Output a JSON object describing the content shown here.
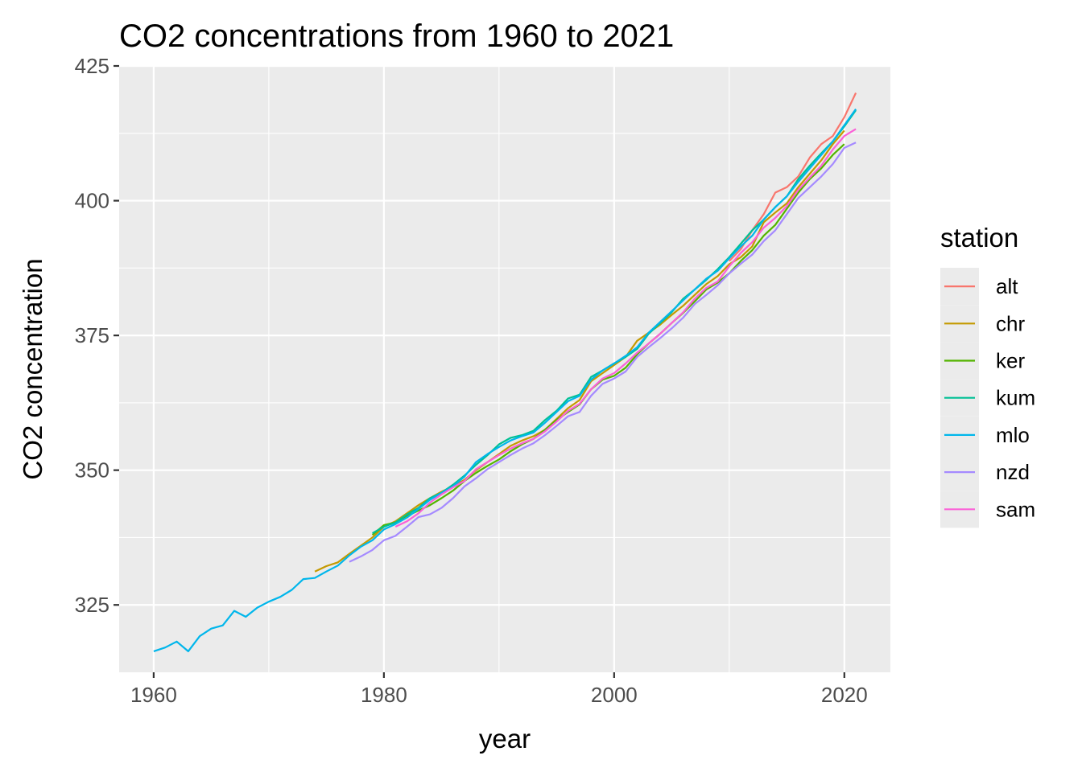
{
  "chart_data": {
    "type": "line",
    "title": "CO2 concentrations from 1960 to 2021",
    "xlabel": "year",
    "ylabel": "CO2 concentration",
    "xlim": [
      1957,
      2024
    ],
    "ylim": [
      312.5,
      425
    ],
    "x_ticks": [
      "1960",
      "1980",
      "2000",
      "2020"
    ],
    "y_ticks": [
      "325",
      "350",
      "375",
      "400",
      "425"
    ],
    "grid": true,
    "legend_title": "station",
    "legend_position": "right",
    "series": [
      {
        "name": "alt",
        "color": "#F8766D",
        "x": [
          2010,
          2011,
          2012,
          2013,
          2014,
          2015,
          2016,
          2017,
          2018,
          2019,
          2020,
          2021
        ],
        "y": [
          388.8,
          391.0,
          394.5,
          397.5,
          401.5,
          402.5,
          404.5,
          408.0,
          410.5,
          412.0,
          415.5,
          420.0
        ]
      },
      {
        "name": "chr",
        "color": "#C49A00",
        "x": [
          1974,
          1975,
          1976,
          1977,
          1978,
          1979,
          1980,
          1981,
          1982,
          1983,
          1984,
          1985,
          1986,
          1987,
          1988,
          1989,
          1990,
          1991,
          1992,
          1993,
          1994,
          1995,
          1996,
          1997,
          1998,
          1999,
          2000,
          2001,
          2002,
          2003,
          2004,
          2005,
          2006,
          2007,
          2008,
          2009,
          2010,
          2011,
          2012,
          2013,
          2014,
          2015,
          2016,
          2017,
          2018,
          2019,
          2020
        ],
        "y": [
          331.2,
          332.2,
          332.9,
          334.5,
          336.0,
          337.5,
          339.5,
          340.5,
          342.0,
          343.5,
          344.8,
          346.0,
          347.0,
          348.2,
          350.0,
          351.5,
          353.0,
          354.5,
          355.5,
          356.3,
          357.5,
          359.5,
          361.5,
          363.0,
          366.5,
          368.0,
          369.5,
          371.0,
          374.0,
          375.5,
          377.0,
          378.8,
          380.5,
          382.5,
          384.5,
          386.0,
          388.2,
          389.5,
          391.5,
          396.0,
          397.8,
          399.5,
          402.5,
          405.0,
          407.5,
          410.5,
          413.0
        ]
      },
      {
        "name": "ker",
        "color": "#53B400",
        "x": [
          1979,
          1980,
          1981,
          1982,
          1983,
          1984,
          1985,
          1986,
          1987,
          1988,
          1989,
          1990,
          1991,
          1992,
          1993,
          1994,
          1995,
          1996,
          1997,
          1998,
          1999,
          2000,
          2001,
          2002,
          2003,
          2004,
          2005,
          2006,
          2007,
          2008,
          2009,
          2010,
          2011,
          2012,
          2013,
          2014,
          2015,
          2016,
          2017,
          2018,
          2019,
          2020
        ],
        "y": [
          338.0,
          339.8,
          340.3,
          341.5,
          342.5,
          343.5,
          344.8,
          346.2,
          348.0,
          349.5,
          350.8,
          352.0,
          353.5,
          354.8,
          355.8,
          357.5,
          359.3,
          360.8,
          362.2,
          365.0,
          366.8,
          367.5,
          369.0,
          371.5,
          373.5,
          375.3,
          377.3,
          379.2,
          381.3,
          383.5,
          384.8,
          386.5,
          388.8,
          390.8,
          393.5,
          395.5,
          398.5,
          401.5,
          404.0,
          406.0,
          408.5,
          410.5
        ]
      },
      {
        "name": "kum",
        "color": "#00C094",
        "x": [
          1979,
          1980,
          1981,
          1982,
          1983,
          1984,
          1985,
          1986,
          1987,
          1988,
          1989,
          1990,
          1991,
          1992,
          1993,
          1994,
          1995,
          1996,
          1997,
          1998,
          1999,
          2000,
          2001,
          2002,
          2003,
          2004,
          2005,
          2006,
          2007,
          2008,
          2009,
          2010,
          2011,
          2012,
          2013,
          2014,
          2015,
          2016,
          2017,
          2018,
          2019,
          2020,
          2021
        ],
        "y": [
          338.3,
          339.5,
          340.3,
          341.8,
          343.0,
          344.8,
          345.8,
          347.3,
          349.0,
          351.0,
          352.8,
          354.8,
          356.0,
          356.5,
          357.3,
          359.3,
          361.0,
          363.3,
          364.0,
          367.3,
          368.5,
          369.8,
          371.0,
          372.5,
          375.3,
          377.3,
          379.3,
          381.8,
          383.5,
          385.3,
          387.3,
          389.5,
          392.0,
          394.5,
          396.5,
          398.8,
          400.8,
          404.0,
          406.5,
          408.8,
          411.0,
          413.8,
          416.8
        ]
      },
      {
        "name": "mlo",
        "color": "#00B6EB",
        "x": [
          1960,
          1961,
          1962,
          1963,
          1964,
          1965,
          1966,
          1967,
          1968,
          1969,
          1970,
          1971,
          1972,
          1973,
          1974,
          1975,
          1976,
          1977,
          1978,
          1979,
          1980,
          1981,
          1982,
          1983,
          1984,
          1985,
          1986,
          1987,
          1988,
          1989,
          1990,
          1991,
          1992,
          1993,
          1994,
          1995,
          1996,
          1997,
          1998,
          1999,
          2000,
          2001,
          2002,
          2003,
          2004,
          2005,
          2006,
          2007,
          2008,
          2009,
          2010,
          2011,
          2012,
          2013,
          2014,
          2015,
          2016,
          2017,
          2018,
          2019,
          2020,
          2021
        ],
        "y": [
          316.4,
          317.1,
          318.2,
          316.4,
          319.2,
          320.6,
          321.2,
          323.9,
          322.8,
          324.5,
          325.6,
          326.5,
          327.8,
          329.8,
          330.0,
          331.2,
          332.3,
          334.2,
          335.8,
          337.0,
          339.0,
          340.0,
          341.2,
          342.8,
          344.5,
          345.8,
          347.0,
          348.8,
          351.5,
          353.0,
          354.3,
          355.5,
          356.3,
          357.0,
          358.8,
          360.8,
          362.8,
          363.8,
          366.8,
          368.5,
          369.8,
          371.2,
          372.8,
          375.5,
          377.5,
          379.5,
          381.5,
          383.5,
          385.5,
          387.0,
          389.3,
          391.5,
          393.5,
          396.5,
          398.8,
          400.8,
          403.5,
          406.0,
          408.5,
          411.0,
          414.0,
          417.0
        ]
      },
      {
        "name": "nzd",
        "color": "#A58AFF",
        "x": [
          1977,
          1978,
          1979,
          1980,
          1981,
          1982,
          1983,
          1984,
          1985,
          1986,
          1987,
          1988,
          1989,
          1990,
          1991,
          1992,
          1993,
          1994,
          1995,
          1996,
          1997,
          1998,
          1999,
          2000,
          2001,
          2002,
          2003,
          2004,
          2005,
          2006,
          2007,
          2008,
          2009,
          2010,
          2011,
          2012,
          2013,
          2014,
          2015,
          2016,
          2017,
          2018,
          2019,
          2020,
          2021
        ],
        "y": [
          333.0,
          334.0,
          335.2,
          337.0,
          337.8,
          339.5,
          341.3,
          341.8,
          343.0,
          344.8,
          347.0,
          348.5,
          350.2,
          351.5,
          352.8,
          354.0,
          355.0,
          356.5,
          358.2,
          360.0,
          360.8,
          363.8,
          366.0,
          367.0,
          368.3,
          371.0,
          372.8,
          374.5,
          376.3,
          378.3,
          380.8,
          382.5,
          384.3,
          386.5,
          388.3,
          390.0,
          392.5,
          394.5,
          397.5,
          400.5,
          402.5,
          404.5,
          406.8,
          409.8,
          410.8
        ]
      },
      {
        "name": "sam",
        "color": "#FB61D7",
        "x": [
          1981,
          1982,
          1983,
          1984,
          1985,
          1986,
          1987,
          1988,
          1989,
          1990,
          1991,
          1992,
          1993,
          1994,
          1995,
          1996,
          1997,
          1998,
          1999,
          2000,
          2001,
          2002,
          2003,
          2004,
          2005,
          2006,
          2007,
          2008,
          2009,
          2010,
          2011,
          2012,
          2013,
          2014,
          2015,
          2016,
          2017,
          2018,
          2019,
          2020,
          2021
        ],
        "y": [
          339.5,
          340.5,
          342.0,
          344.0,
          345.5,
          346.8,
          348.0,
          350.2,
          351.5,
          352.8,
          354.0,
          355.0,
          355.8,
          357.2,
          359.0,
          361.0,
          362.3,
          365.0,
          367.0,
          368.0,
          369.8,
          371.8,
          373.5,
          375.3,
          377.3,
          379.3,
          381.8,
          383.8,
          385.0,
          387.8,
          390.3,
          392.3,
          395.0,
          396.8,
          399.0,
          402.0,
          404.3,
          406.5,
          409.5,
          412.0,
          413.3
        ]
      }
    ]
  }
}
